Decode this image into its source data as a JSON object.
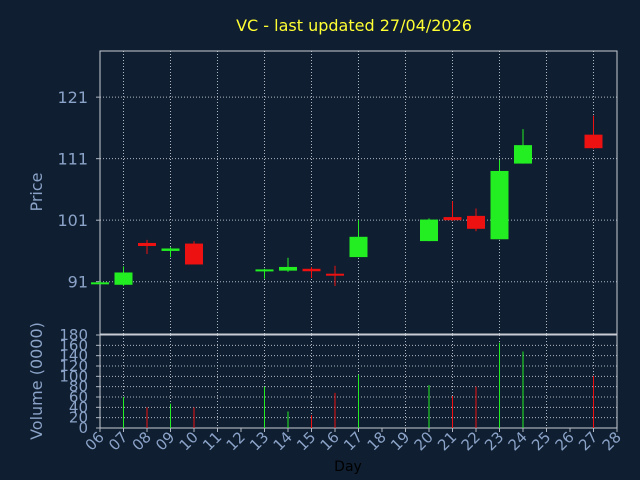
{
  "chart_data": {
    "type": "candlestick",
    "title": "VC - last updated 27/04/2026",
    "xlabel": "Day",
    "ylabel_price": "Price",
    "ylabel_volume": "Volume (0000)",
    "x_ticks": [
      "06",
      "07",
      "08",
      "09",
      "10",
      "11",
      "12",
      "13",
      "14",
      "15",
      "16",
      "17",
      "18",
      "19",
      "20",
      "21",
      "22",
      "23",
      "24",
      "25",
      "26",
      "27",
      "28"
    ],
    "price_ticks": [
      91,
      101,
      111,
      121
    ],
    "price_range": [
      82.5,
      128.5
    ],
    "volume_ticks": [
      0,
      20,
      40,
      60,
      80,
      100,
      120,
      140,
      160,
      180
    ],
    "volume_range": [
      0,
      180
    ],
    "grid": true,
    "colors": {
      "background": "#0f1e30",
      "up": "#22ee22",
      "down": "#ee1111",
      "title": "#ffff33",
      "axis_text": "#8ba3c8"
    },
    "candles": [
      {
        "day": "06",
        "open": 90.9,
        "high": 91.1,
        "low": 90.8,
        "close": 90.9,
        "volume": 0
      },
      {
        "day": "07",
        "open": 90.5,
        "high": 93.5,
        "low": 90.3,
        "close": 92.5,
        "volume": 60
      },
      {
        "day": "08",
        "open": 97.3,
        "high": 97.8,
        "low": 95.5,
        "close": 96.8,
        "volume": 40
      },
      {
        "day": "09",
        "open": 96.0,
        "high": 96.6,
        "low": 95.0,
        "close": 96.4,
        "volume": 47
      },
      {
        "day": "10",
        "open": 97.2,
        "high": 97.6,
        "low": 93.8,
        "close": 93.8,
        "volume": 40
      },
      {
        "day": "13",
        "open": 92.8,
        "high": 93.1,
        "low": 91.5,
        "close": 93.0,
        "volume": 80
      },
      {
        "day": "14",
        "open": 92.8,
        "high": 94.9,
        "low": 92.6,
        "close": 93.4,
        "volume": 32
      },
      {
        "day": "15",
        "open": 93.1,
        "high": 93.4,
        "low": 91.6,
        "close": 92.7,
        "volume": 25
      },
      {
        "day": "16",
        "open": 92.3,
        "high": 93.6,
        "low": 90.3,
        "close": 92.1,
        "volume": 68
      },
      {
        "day": "17",
        "open": 95.0,
        "high": 101.0,
        "low": 95.0,
        "close": 98.3,
        "volume": 103
      },
      {
        "day": "20",
        "open": 97.6,
        "high": 101.3,
        "low": 97.6,
        "close": 101.1,
        "volume": 83
      },
      {
        "day": "21",
        "open": 101.5,
        "high": 104.1,
        "low": 100.9,
        "close": 101.0,
        "volume": 62
      },
      {
        "day": "22",
        "open": 101.7,
        "high": 102.9,
        "low": 99.2,
        "close": 99.6,
        "volume": 80
      },
      {
        "day": "23",
        "open": 97.9,
        "high": 110.8,
        "low": 97.9,
        "close": 109.0,
        "volume": 165
      },
      {
        "day": "24",
        "open": 110.2,
        "high": 115.8,
        "low": 110.2,
        "close": 113.2,
        "volume": 148
      },
      {
        "day": "27",
        "open": 114.9,
        "high": 118.0,
        "low": 112.6,
        "close": 112.7,
        "volume": 101
      }
    ]
  }
}
